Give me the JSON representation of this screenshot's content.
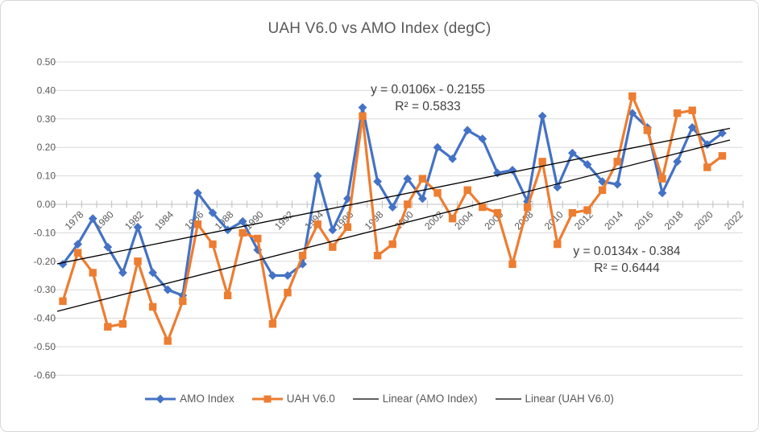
{
  "chart_data": {
    "type": "line",
    "title": "UAH V6.0 vs AMO Index (degC)",
    "xlabel": "",
    "ylabel": "",
    "ylim": [
      -0.6,
      0.5
    ],
    "ytick_step": 0.1,
    "ytick_labels": [
      "0.50",
      "0.40",
      "0.30",
      "0.20",
      "0.10",
      "0.00",
      "-0.10",
      "-0.20",
      "-0.30",
      "-0.40",
      "-0.50",
      "-0.60"
    ],
    "grid": "horizontal",
    "legend_position": "bottom",
    "years": [
      1978,
      1979,
      1980,
      1981,
      1982,
      1983,
      1984,
      1985,
      1986,
      1987,
      1988,
      1989,
      1990,
      1991,
      1992,
      1993,
      1994,
      1995,
      1996,
      1997,
      1998,
      1999,
      2000,
      2001,
      2002,
      2003,
      2004,
      2005,
      2006,
      2007,
      2008,
      2009,
      2010,
      2011,
      2012,
      2013,
      2014,
      2015,
      2016,
      2017,
      2018,
      2019,
      2020,
      2021,
      2022
    ],
    "xtick_labels": [
      "1978",
      "1980",
      "1982",
      "1984",
      "1986",
      "1988",
      "1990",
      "1992",
      "1994",
      "1996",
      "1998",
      "2000",
      "2002",
      "2004",
      "2006",
      "2008",
      "2010",
      "2012",
      "2014",
      "2016",
      "2018",
      "2020",
      "2022"
    ],
    "series": [
      {
        "name": "AMO Index",
        "color": "#4472C4",
        "marker": "diamond",
        "values": [
          -0.21,
          -0.14,
          -0.05,
          -0.15,
          -0.24,
          -0.08,
          -0.24,
          -0.3,
          -0.32,
          0.04,
          -0.03,
          -0.09,
          -0.06,
          -0.16,
          -0.25,
          -0.25,
          -0.21,
          0.1,
          -0.09,
          0.02,
          0.34,
          0.08,
          -0.01,
          0.09,
          0.02,
          0.2,
          0.16,
          0.26,
          0.23,
          0.11,
          0.12,
          0.01,
          0.31,
          0.06,
          0.18,
          0.14,
          0.08,
          0.07,
          0.32,
          0.27,
          0.04,
          0.15,
          0.27,
          0.21,
          0.25
        ]
      },
      {
        "name": "UAH V6.0",
        "color": "#ED7D31",
        "marker": "square",
        "values": [
          -0.34,
          -0.17,
          -0.24,
          -0.43,
          -0.42,
          -0.2,
          -0.36,
          -0.48,
          -0.34,
          -0.07,
          -0.14,
          -0.32,
          -0.1,
          -0.12,
          -0.42,
          -0.31,
          -0.18,
          -0.07,
          -0.15,
          -0.08,
          0.31,
          -0.18,
          -0.14,
          0.0,
          0.09,
          0.04,
          -0.05,
          0.05,
          -0.01,
          -0.03,
          -0.21,
          -0.01,
          0.15,
          -0.14,
          -0.03,
          -0.02,
          0.05,
          0.15,
          0.38,
          0.26,
          0.09,
          0.32,
          0.33,
          0.13,
          0.17
        ]
      }
    ],
    "trendlines": [
      {
        "name": "Linear (AMO Index)",
        "slope": 0.0106,
        "intercept": -0.2155,
        "r2": 0.5833,
        "equation_label": "y = 0.0106x - 0.2155",
        "r2_label": "R² = 0.5833",
        "color": "#000000"
      },
      {
        "name": "Linear (UAH V6.0)",
        "slope": 0.0134,
        "intercept": -0.384,
        "r2": 0.6444,
        "equation_label": "y = 0.0134x - 0.384",
        "r2_label": "R² = 0.6444",
        "color": "#000000"
      }
    ],
    "colors": {
      "gridline": "#D9D9D9",
      "axis": "#BFBFBF",
      "text": "#595959",
      "annotation_text": "#3F3F3F"
    }
  }
}
